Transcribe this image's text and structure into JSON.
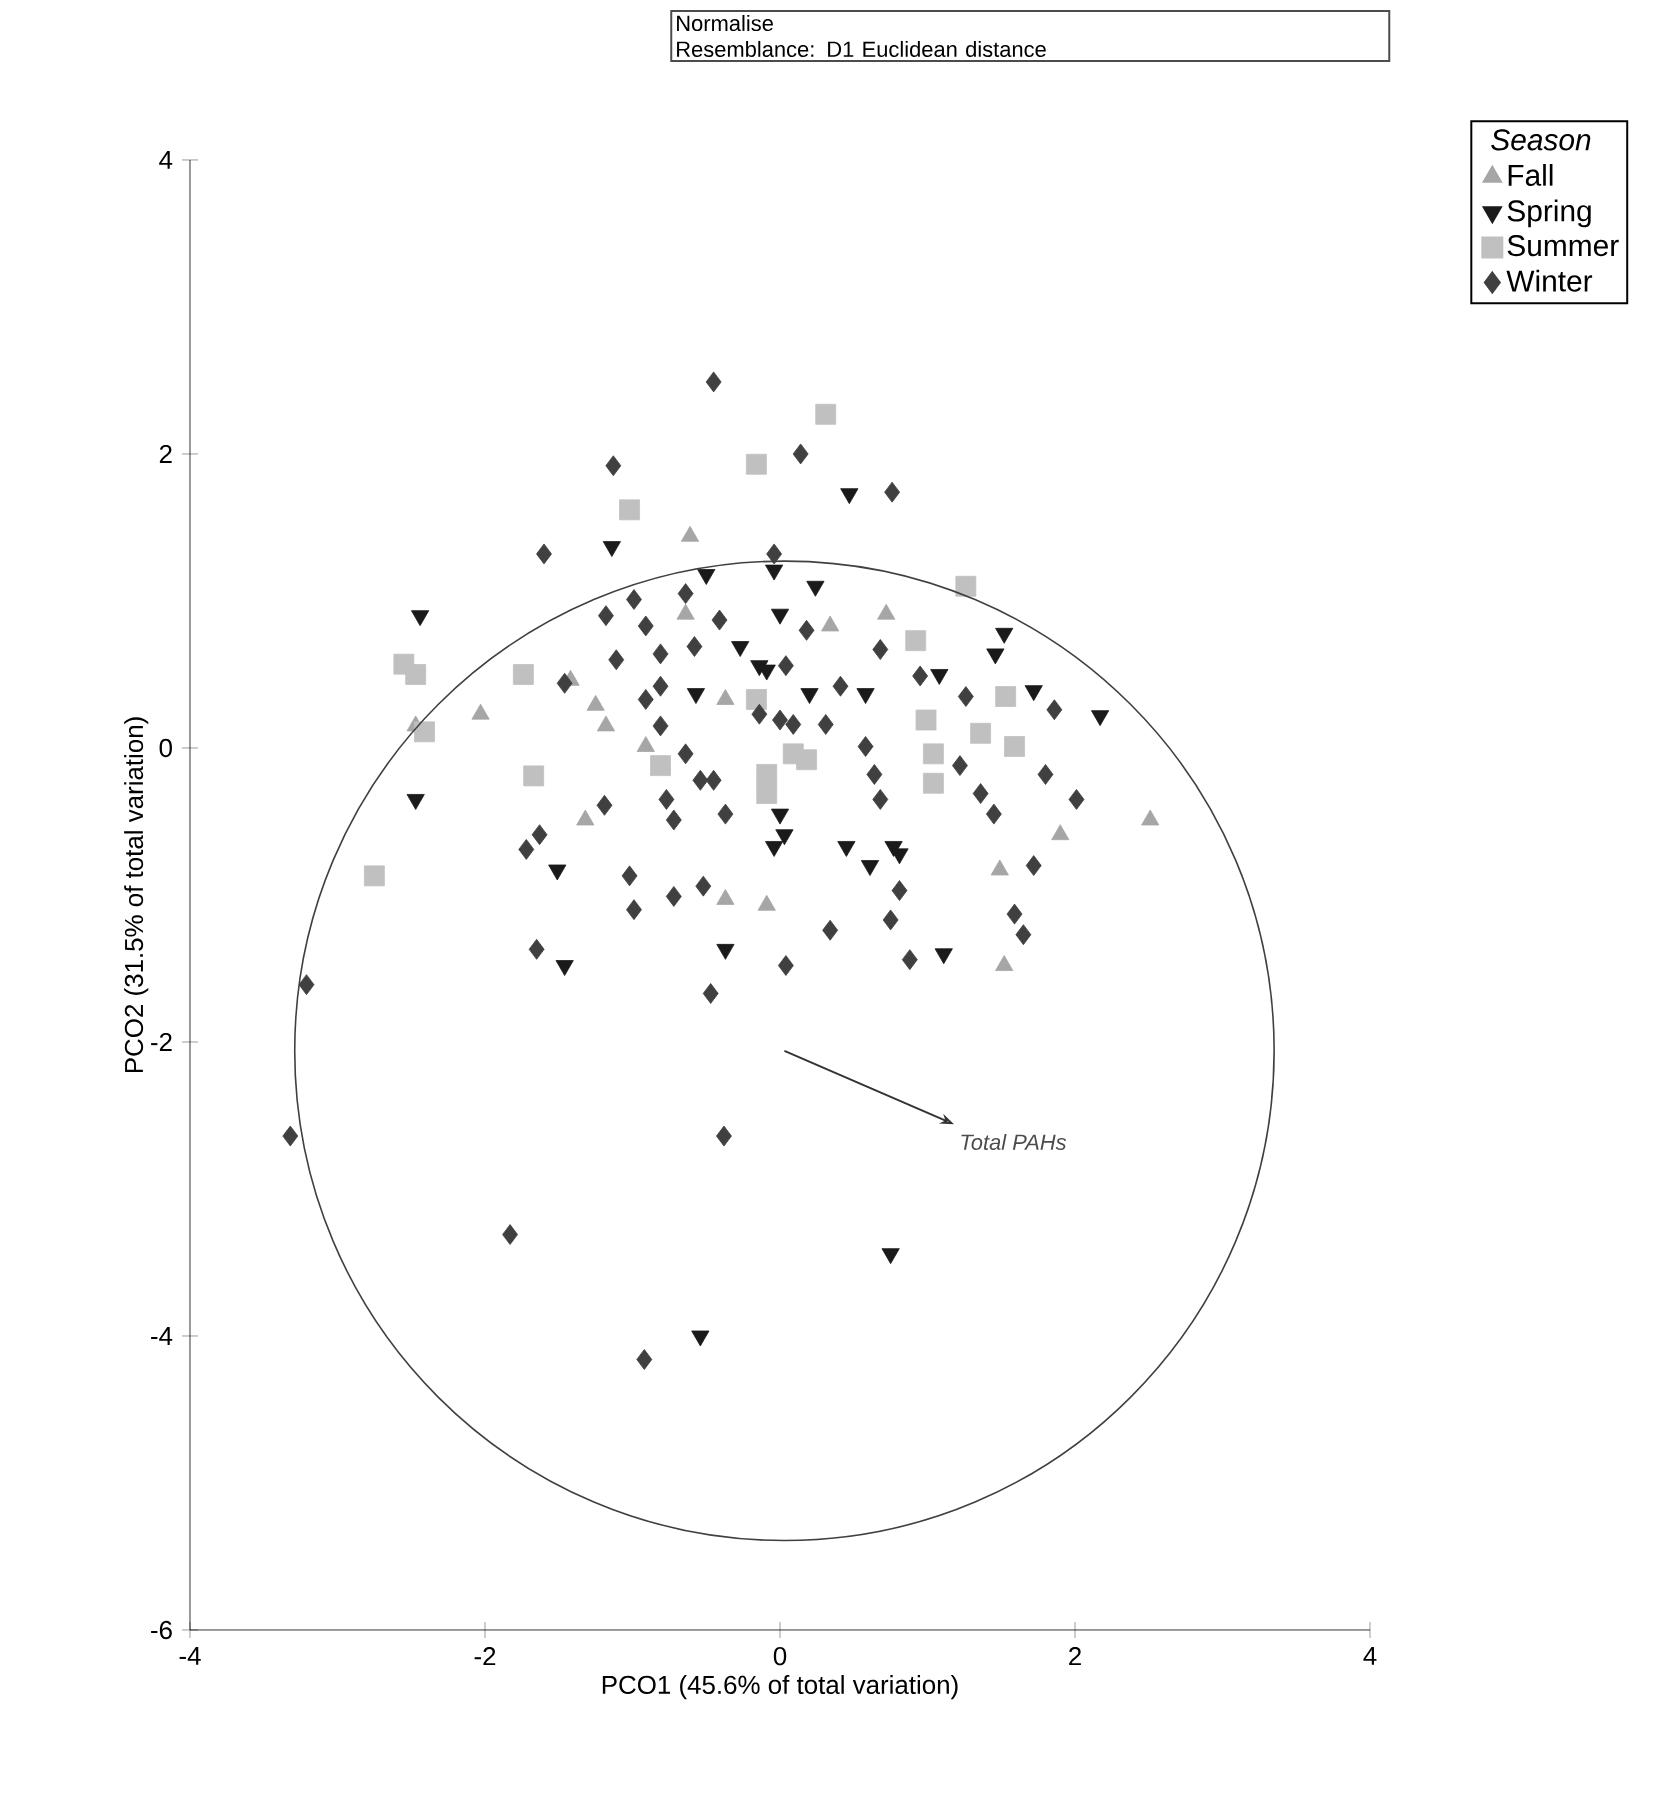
{
  "chart_data": {
    "type": "scatter",
    "xlabel": "PCO1 (45.6% of total variation)",
    "ylabel": "PCO2 (31.5% of total variation)",
    "legend_title": "Season",
    "legend": "top right",
    "xlim": [
      -4,
      4
    ],
    "ylim": [
      -6,
      4
    ],
    "xticks": [
      -4,
      -2,
      0,
      2,
      4
    ],
    "yticks": [
      -6,
      -4,
      -2,
      0,
      2,
      4
    ],
    "annotations": [
      "Normalise",
      "Resemblance: D1 Euclidean distance",
      "Total PAHs"
    ],
    "series": [
      {
        "name": "Fall",
        "color": "#a6a6a6",
        "marker": "triangle",
        "x": [
          -0.61,
          -2.03,
          -1.25,
          -2.47,
          -1.18,
          -0.37,
          -0.91,
          -1.32,
          -0.64,
          0.34,
          0.72,
          1.9,
          2.51,
          -0.37,
          -0.09,
          1.49,
          1.52,
          -1.42
        ],
        "values": [
          1.44,
          0.23,
          0.29,
          0.15,
          0.15,
          0.33,
          0.01,
          -0.49,
          0.91,
          0.83,
          0.91,
          -0.59,
          -0.49,
          -1.03,
          -1.07,
          -0.83,
          -1.48,
          0.46
        ]
      },
      {
        "name": "Spring",
        "color": "#1a1a1a",
        "marker": "triangle-down",
        "x": [
          -1.14,
          -2.44,
          -0.57,
          -2.47,
          0.03,
          0.0,
          -0.27,
          -0.14,
          -0.5,
          0.47,
          -0.04,
          0.24,
          1.52,
          1.46,
          -0.09,
          0.2,
          0.58,
          1.08,
          1.72,
          2.17,
          0.0,
          0.45,
          0.77,
          -1.51,
          -1.46,
          -0.37,
          1.11,
          0.75,
          -0.54,
          -0.04,
          0.61,
          0.81
        ],
        "values": [
          1.37,
          0.9,
          0.37,
          -0.35,
          -0.59,
          0.91,
          0.69,
          0.56,
          1.18,
          1.73,
          1.21,
          1.1,
          0.78,
          0.64,
          0.53,
          0.37,
          0.37,
          0.5,
          0.39,
          0.22,
          -0.45,
          -0.67,
          -0.67,
          -0.83,
          -1.48,
          -1.37,
          -1.4,
          -3.44,
          -4.0,
          -0.67,
          -0.8,
          -0.72
        ]
      },
      {
        "name": "Summer",
        "color": "#c0c0c0",
        "marker": "square",
        "x": [
          -0.16,
          -1.02,
          0.31,
          -2.55,
          -2.47,
          -1.74,
          -0.16,
          -1.67,
          -0.09,
          -0.81,
          0.09,
          0.92,
          1.26,
          1.53,
          0.18,
          0.99,
          1.04,
          1.36,
          1.59,
          1.04,
          -0.09,
          -2.75,
          -2.41
        ],
        "values": [
          1.93,
          1.62,
          2.27,
          0.57,
          0.5,
          0.5,
          0.33,
          -0.19,
          -0.31,
          -0.12,
          -0.04,
          0.73,
          1.1,
          0.35,
          -0.08,
          0.19,
          -0.04,
          0.1,
          0.01,
          -0.24,
          -0.18,
          -0.87,
          0.11
        ]
      },
      {
        "name": "Winter",
        "color": "#404040",
        "marker": "diamond",
        "x": [
          -0.45,
          -1.13,
          0.14,
          0.76,
          -1.6,
          -0.04,
          -1.18,
          -1.11,
          -1.46,
          -0.91,
          -0.81,
          -0.64,
          0.0,
          -1.19,
          -0.77,
          -0.54,
          -0.37,
          -1.63,
          -0.72,
          -0.41,
          -0.58,
          -0.91,
          -0.99,
          -0.64,
          -0.81,
          -0.81,
          -0.45,
          0.09,
          0.18,
          0.68,
          0.04,
          0.41,
          0.95,
          1.26,
          1.86,
          0.31,
          0.58,
          0.64,
          0.68,
          1.22,
          1.36,
          1.45,
          1.8,
          2.01,
          -0.14,
          -1.72,
          -1.02,
          -0.99,
          -0.72,
          -0.52,
          -1.65,
          -0.47,
          0.04,
          0.34,
          0.81,
          0.75,
          0.88,
          1.59,
          1.65,
          1.72,
          -3.21,
          -3.32,
          -0.38,
          -1.83,
          -0.92
        ],
        "values": [
          2.49,
          1.92,
          2.0,
          1.74,
          1.32,
          1.32,
          0.9,
          0.6,
          0.44,
          0.33,
          0.15,
          -0.04,
          0.19,
          -0.39,
          -0.35,
          -0.22,
          -0.45,
          -0.59,
          -0.49,
          0.87,
          0.69,
          0.83,
          1.01,
          1.05,
          0.64,
          0.42,
          -0.22,
          0.16,
          0.8,
          0.67,
          0.56,
          0.42,
          0.49,
          0.35,
          0.26,
          0.16,
          0.01,
          -0.18,
          -0.35,
          -0.12,
          -0.31,
          -0.45,
          -0.18,
          -0.35,
          0.23,
          -0.69,
          -0.87,
          -1.1,
          -1.01,
          -0.94,
          -1.37,
          -1.67,
          -1.48,
          -1.24,
          -0.97,
          -1.17,
          -1.44,
          -1.13,
          -1.27,
          -0.8,
          -1.61,
          -2.64,
          -2.64,
          -3.31,
          -4.16
        ]
      }
    ]
  }
}
